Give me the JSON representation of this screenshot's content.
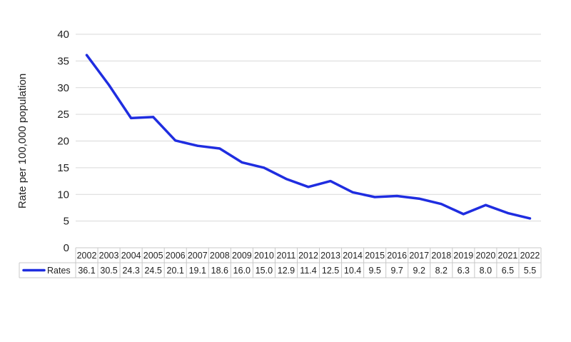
{
  "chart_data": {
    "type": "line",
    "title": "",
    "xlabel": "",
    "ylabel": "Rate per 100,000 population",
    "ylim": [
      0,
      40
    ],
    "yticks": [
      0,
      5,
      10,
      15,
      20,
      25,
      30,
      35,
      40
    ],
    "grid": true,
    "legend": "data-table-below",
    "categories": [
      "2002",
      "2003",
      "2004",
      "2005",
      "2006",
      "2007",
      "2008",
      "2009",
      "2010",
      "2011",
      "2012",
      "2013",
      "2014",
      "2015",
      "2016",
      "2017",
      "2018",
      "2019",
      "2020",
      "2021",
      "2022"
    ],
    "series": [
      {
        "name": "Rates",
        "color": "#1f2de0",
        "values": [
          36.1,
          30.5,
          24.3,
          24.5,
          20.1,
          19.1,
          18.6,
          16.0,
          15.0,
          12.9,
          11.4,
          12.5,
          10.4,
          9.5,
          9.7,
          9.2,
          8.2,
          6.3,
          8.0,
          6.5,
          5.5
        ],
        "labels": [
          "36.1",
          "30.5",
          "24.3",
          "24.5",
          "20.1",
          "19.1",
          "18.6",
          "16.0",
          "15.0",
          "12.9",
          "11.4",
          "12.5",
          "10.4",
          "9.5",
          "9.7",
          "9.2",
          "8.2",
          "6.3",
          "8.0",
          "6.5",
          "5.5"
        ]
      }
    ]
  },
  "colors": {
    "grid": "#d9d9d9",
    "text": "#222222",
    "table_border": "#c8c8c8"
  }
}
